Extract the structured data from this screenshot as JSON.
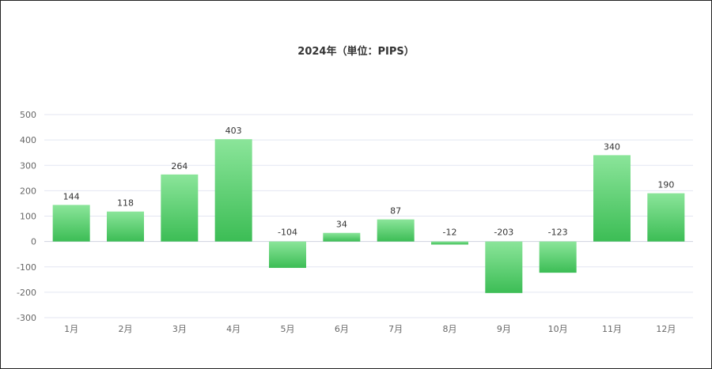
{
  "chart_data": {
    "type": "bar",
    "title": "2024年（単位：PIPS）",
    "categories": [
      "1月",
      "2月",
      "3月",
      "4月",
      "5月",
      "6月",
      "7月",
      "8月",
      "9月",
      "10月",
      "11月",
      "12月"
    ],
    "values": [
      144,
      118,
      264,
      403,
      -104,
      34,
      87,
      -12,
      -203,
      -123,
      340,
      190
    ],
    "ylim": [
      -300,
      500
    ],
    "yticks": [
      500,
      400,
      300,
      200,
      100,
      0,
      -100,
      -200,
      -300
    ],
    "grid": true,
    "colors": {
      "bar_top": "#8be59a",
      "bar_bottom": "#3cbd55",
      "grid": "#e3e6f2",
      "axis": "#cfd3df"
    }
  }
}
